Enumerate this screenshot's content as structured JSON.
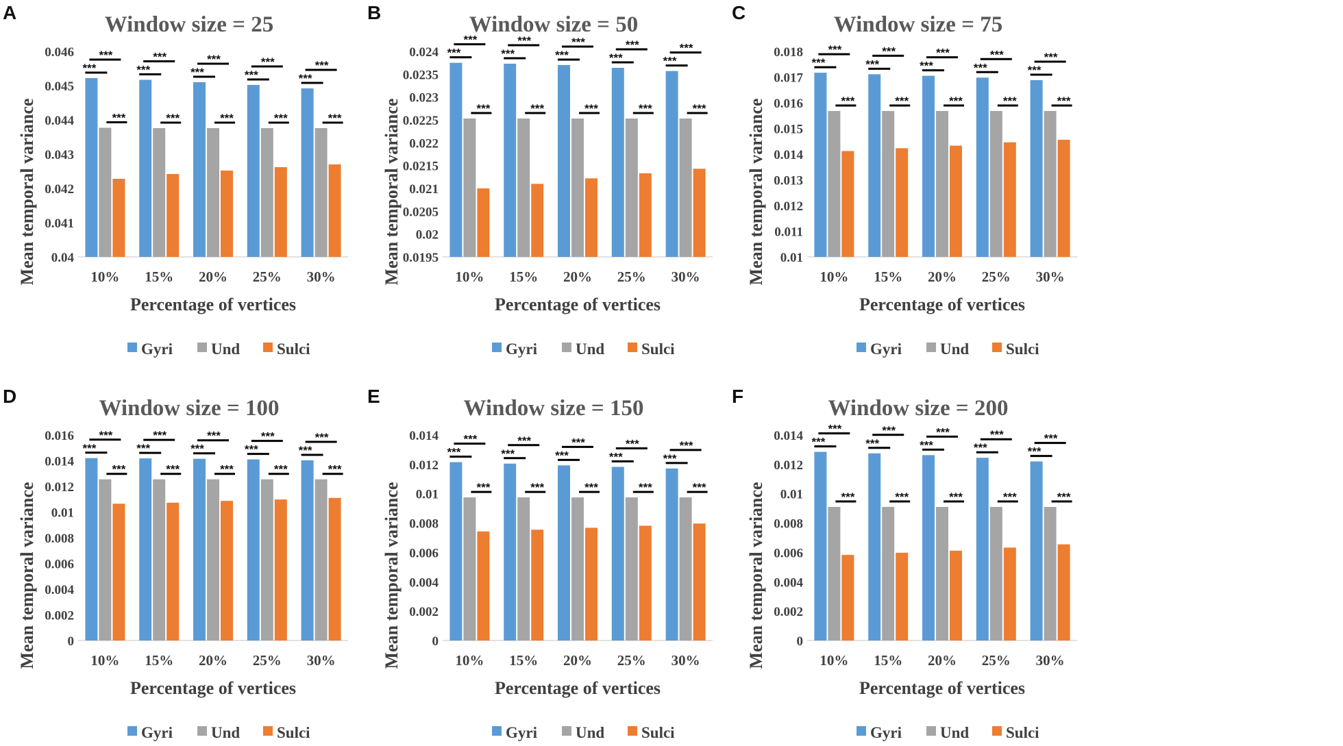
{
  "figure": {
    "x_label": "Percentage of vertices",
    "y_label": "Mean temporal variance",
    "significance_label": "***",
    "legend": [
      {
        "name": "Gyri",
        "color": "#5B9BD5"
      },
      {
        "name": "Und",
        "color": "#A5A5A5"
      },
      {
        "name": "Sulci",
        "color": "#ED7D31"
      }
    ]
  },
  "chart_data": [
    {
      "panel": "A",
      "type": "bar",
      "title": "Window size = 25",
      "xlabel": "Percentage of vertices",
      "ylabel": "Mean temporal variance",
      "categories": [
        "10%",
        "15%",
        "20%",
        "25%",
        "30%"
      ],
      "ylim": [
        0.04,
        0.046
      ],
      "yticks": [
        "0.04",
        "0.041",
        "0.042",
        "0.043",
        "0.044",
        "0.045",
        "0.046"
      ],
      "series": [
        {
          "name": "Gyri",
          "values": [
            0.04522,
            0.04517,
            0.0451,
            0.04502,
            0.04492
          ]
        },
        {
          "name": "Und",
          "values": [
            0.04377,
            0.04376,
            0.04376,
            0.04376,
            0.04376
          ]
        },
        {
          "name": "Sulci",
          "values": [
            0.04228,
            0.04242,
            0.04252,
            0.04262,
            0.0427
          ]
        }
      ],
      "legend": "bottom"
    },
    {
      "panel": "B",
      "type": "bar",
      "title": "Window size = 50",
      "xlabel": "Percentage of vertices",
      "ylabel": "Mean temporal variance",
      "categories": [
        "10%",
        "15%",
        "20%",
        "25%",
        "30%"
      ],
      "ylim": [
        0.0195,
        0.024
      ],
      "yticks": [
        "0.0195",
        "0.02",
        "0.0205",
        "0.021",
        "0.0215",
        "0.022",
        "0.0225",
        "0.023",
        "0.0235",
        "0.024"
      ],
      "series": [
        {
          "name": "Gyri",
          "values": [
            0.02375,
            0.02373,
            0.0237,
            0.02364,
            0.02357
          ]
        },
        {
          "name": "Und",
          "values": [
            0.02253,
            0.02253,
            0.02253,
            0.02253,
            0.02253
          ]
        },
        {
          "name": "Sulci",
          "values": [
            0.021,
            0.0211,
            0.02122,
            0.02133,
            0.02143
          ]
        }
      ],
      "legend": "bottom"
    },
    {
      "panel": "C",
      "type": "bar",
      "title": "Window size = 75",
      "xlabel": "Percentage of vertices",
      "ylabel": "Mean temporal variance",
      "categories": [
        "10%",
        "15%",
        "20%",
        "25%",
        "30%"
      ],
      "ylim": [
        0.01,
        0.018
      ],
      "yticks": [
        "0.01",
        "0.011",
        "0.012",
        "0.013",
        "0.014",
        "0.015",
        "0.016",
        "0.017",
        "0.018"
      ],
      "series": [
        {
          "name": "Gyri",
          "values": [
            0.01717,
            0.01711,
            0.01705,
            0.01698,
            0.01688
          ]
        },
        {
          "name": "Und",
          "values": [
            0.01568,
            0.01568,
            0.01568,
            0.01568,
            0.01568
          ]
        },
        {
          "name": "Sulci",
          "values": [
            0.01412,
            0.01423,
            0.01433,
            0.01446,
            0.01456
          ]
        }
      ],
      "legend": "bottom"
    },
    {
      "panel": "D",
      "type": "bar",
      "title": "Window size = 100",
      "xlabel": "Percentage of vertices",
      "ylabel": "Mean temporal variance",
      "categories": [
        "10%",
        "15%",
        "20%",
        "25%",
        "30%"
      ],
      "ylim": [
        0,
        0.016
      ],
      "yticks": [
        "0",
        "0.002",
        "0.004",
        "0.006",
        "0.008",
        "0.01",
        "0.012",
        "0.014",
        "0.016"
      ],
      "series": [
        {
          "name": "Gyri",
          "values": [
            0.0142,
            0.01418,
            0.01415,
            0.0141,
            0.01403
          ]
        },
        {
          "name": "Und",
          "values": [
            0.01255,
            0.01255,
            0.01255,
            0.01255,
            0.01255
          ]
        },
        {
          "name": "Sulci",
          "values": [
            0.01065,
            0.01073,
            0.01087,
            0.01098,
            0.0111
          ]
        }
      ],
      "legend": "bottom"
    },
    {
      "panel": "E",
      "type": "bar",
      "title": "Window size = 150",
      "xlabel": "Percentage of vertices",
      "ylabel": "Mean temporal variance",
      "categories": [
        "10%",
        "15%",
        "20%",
        "25%",
        "30%"
      ],
      "ylim": [
        0,
        0.014
      ],
      "yticks": [
        "0",
        "0.002",
        "0.004",
        "0.006",
        "0.008",
        "0.01",
        "0.012",
        "0.014"
      ],
      "series": [
        {
          "name": "Gyri",
          "values": [
            0.01215,
            0.01205,
            0.01193,
            0.01183,
            0.01172
          ]
        },
        {
          "name": "Und",
          "values": [
            0.00975,
            0.00975,
            0.00975,
            0.00975,
            0.00975
          ]
        },
        {
          "name": "Sulci",
          "values": [
            0.00743,
            0.00755,
            0.00768,
            0.00782,
            0.00797
          ]
        }
      ],
      "legend": "bottom"
    },
    {
      "panel": "F",
      "type": "bar",
      "title": "Window size = 200",
      "xlabel": "Percentage of vertices",
      "ylabel": "Mean temporal variance",
      "categories": [
        "10%",
        "15%",
        "20%",
        "25%",
        "30%"
      ],
      "ylim": [
        0,
        0.014
      ],
      "yticks": [
        "0",
        "0.002",
        "0.004",
        "0.006",
        "0.008",
        "0.01",
        "0.012",
        "0.014"
      ],
      "series": [
        {
          "name": "Gyri",
          "values": [
            0.01285,
            0.01275,
            0.01263,
            0.01245,
            0.0122
          ]
        },
        {
          "name": "Und",
          "values": [
            0.0091,
            0.0091,
            0.0091,
            0.0091,
            0.0091
          ]
        },
        {
          "name": "Sulci",
          "values": [
            0.00583,
            0.00598,
            0.00612,
            0.00633,
            0.00655
          ]
        }
      ],
      "legend": "bottom"
    }
  ]
}
